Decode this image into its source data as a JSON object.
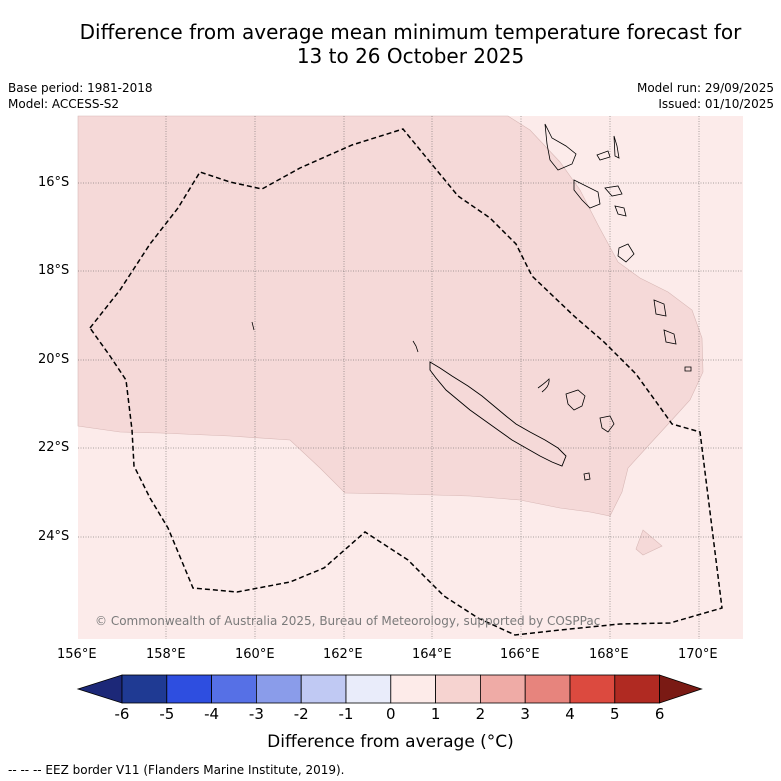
{
  "title_line1": "Difference from average mean minimum temperature forecast for",
  "title_line2": "13 to 26 October 2025",
  "meta_left": {
    "base_period": "Base period: 1981-2018",
    "model": "Model: ACCESS-S2"
  },
  "meta_right": {
    "model_run": "Model run: 29/09/2025",
    "issued": "Issued: 01/10/2025"
  },
  "map": {
    "lon_ticks": [
      "156°E",
      "158°E",
      "160°E",
      "162°E",
      "164°E",
      "166°E",
      "168°E",
      "170°E"
    ],
    "lat_ticks": [
      "16°S",
      "18°S",
      "20°S",
      "22°S",
      "24°S"
    ],
    "copyright": "© Commonwealth of Australia 2025, Bureau of Meteorology, supported by COSPPac",
    "fill_colors": {
      "light": "#fcebea",
      "medium": "#f5d9d8"
    }
  },
  "colorbar": {
    "labels": [
      "-6",
      "-5",
      "-4",
      "-3",
      "-2",
      "-1",
      "0",
      "1",
      "2",
      "3",
      "4",
      "5",
      "6"
    ],
    "colors": [
      "#1f3a93",
      "#2e4ee0",
      "#5670e6",
      "#8a9cea",
      "#c0c9f3",
      "#e9ecfa",
      "#fdebe9",
      "#f6d3d0",
      "#efaba6",
      "#e7847d",
      "#dc4a3f",
      "#b02a22"
    ],
    "low_extend": "#1c2878",
    "high_extend": "#7a1a14",
    "title": "Difference from average (°C)"
  },
  "footnote": "-- -- -- EEZ border V11 (Flanders Marine Institute, 2019)."
}
